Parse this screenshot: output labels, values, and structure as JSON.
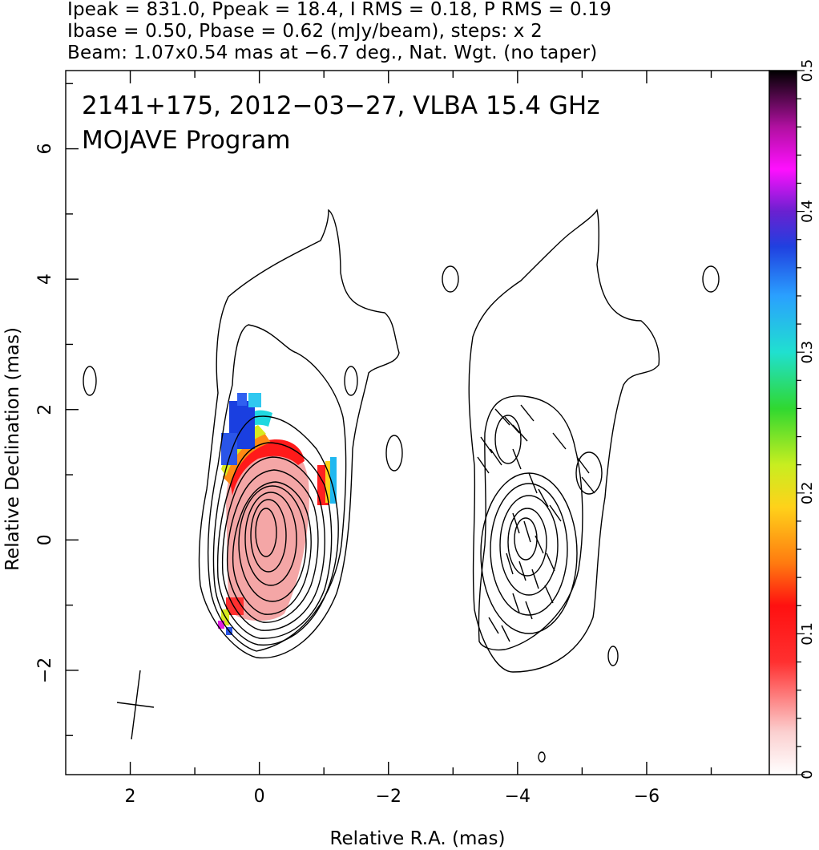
{
  "header": {
    "line1": "Ipeak = 831.0, Ppeak = 18.4, I RMS = 0.18, P RMS = 0.19",
    "line2": "Ibase = 0.50, Pbase = 0.62 (mJy/beam), steps: x 2",
    "line3": "Beam: 1.07x0.54 mas at −6.7 deg., Nat. Wgt. (no taper)"
  },
  "chart_data": {
    "type": "heatmap",
    "title_lines": [
      "2141+175, 2012−03−27, VLBA 15.4 GHz",
      "MOJAVE Program"
    ],
    "xlabel": "Relative R.A. (mas)",
    "ylabel": "Relative Declination (mas)",
    "xlim": [
      3.0,
      -7.9
    ],
    "ylim": [
      -3.6,
      7.2
    ],
    "x_ticks": [
      {
        "v": 2,
        "label": "2"
      },
      {
        "v": 0,
        "label": "0"
      },
      {
        "v": -2,
        "label": "−2"
      },
      {
        "v": -4,
        "label": "−4"
      },
      {
        "v": -6,
        "label": "−6"
      }
    ],
    "y_ticks": [
      {
        "v": -2,
        "label": "−2"
      },
      {
        "v": 0,
        "label": "0"
      },
      {
        "v": 2,
        "label": "2"
      },
      {
        "v": 4,
        "label": "4"
      },
      {
        "v": 6,
        "label": "6"
      }
    ],
    "colorbar": {
      "range": [
        0,
        0.5
      ],
      "ticks": [
        {
          "v": 0,
          "label": "0"
        },
        {
          "v": 0.1,
          "label": "0.1"
        },
        {
          "v": 0.2,
          "label": "0.2"
        },
        {
          "v": 0.3,
          "label": "0.3"
        },
        {
          "v": 0.4,
          "label": "0.4"
        },
        {
          "v": 0.5,
          "label": "0.5"
        }
      ]
    },
    "image_panel": {
      "core_ra": 0.0,
      "core_dec": 0.0
    },
    "contour_panel": {
      "core_ra": -4.0,
      "core_dec": 0.0
    }
  },
  "colors": {
    "contour": "#000000",
    "fractional_polarization_low": "#f4a6a6",
    "fractional_polarization_mid": "#ff1a1a",
    "fractional_polarization_high": "#1a3fe0"
  }
}
